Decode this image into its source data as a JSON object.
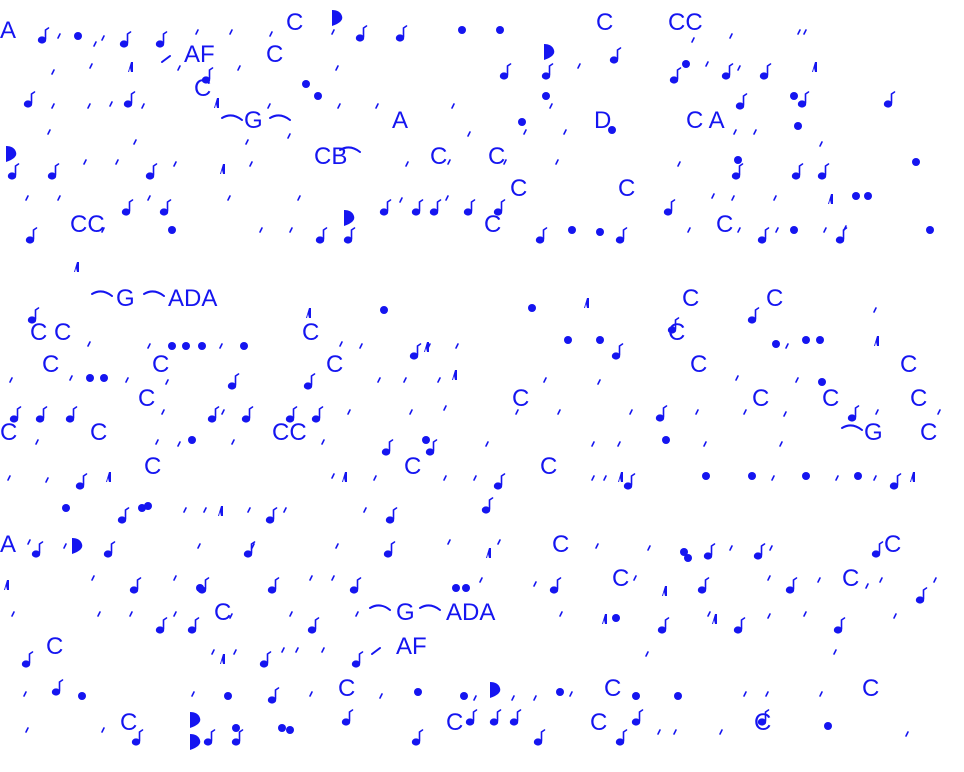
{
  "palette": {
    "ink": "#1515f0",
    "background": "#ffffff"
  },
  "labels": {
    "a1": "A",
    "af1": "AF",
    "c1": "C",
    "c2": "C",
    "cc1": "CC",
    "c3": "C",
    "g1": "G",
    "a2": "A",
    "d1": "D",
    "ca1": "C A",
    "c4": "C",
    "cb1": "CB",
    "c5": "C",
    "c6": "C",
    "c7": "C",
    "c8": "C",
    "cc2": "CC",
    "c9": "C",
    "c10": "C",
    "g2": "G",
    "ada1": "ADA",
    "c11": "C",
    "c12": "C",
    "c13": "C",
    "cc3": "C C",
    "c14": "C",
    "c15": "C",
    "c16": "C",
    "c17": "C",
    "c18": "C",
    "c19": "C",
    "c20": "C",
    "c21": "C",
    "c22": "C",
    "c23": "C",
    "c24": "C",
    "c25": "C",
    "cc4": "CC",
    "g3": "G",
    "c26": "C",
    "c27": "C",
    "c28": "C",
    "c29": "C",
    "c30": "C",
    "a3": "A",
    "c31": "C",
    "c32": "C",
    "c33": "C",
    "c34": "C",
    "c35": "C",
    "g4": "G",
    "ada2": "ADA",
    "c36": "C",
    "af2": "AF",
    "c37": "C",
    "c38": "C",
    "c39": "C",
    "c40": "C",
    "c41": "C",
    "c42": "C",
    "c43": "C"
  }
}
